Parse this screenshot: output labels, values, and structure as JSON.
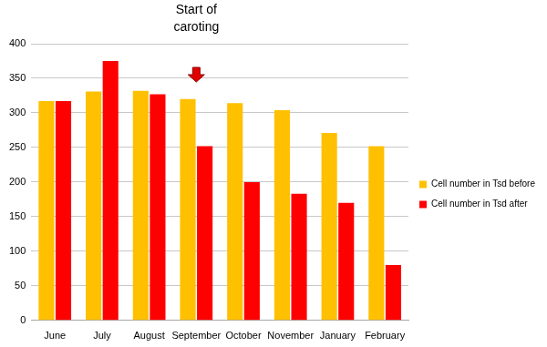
{
  "chart_data": {
    "type": "bar",
    "annotations": [
      {
        "text": "Start of caroting",
        "category": "September"
      }
    ],
    "categories": [
      "June",
      "July",
      "August",
      "September",
      "October",
      "November",
      "January",
      "February"
    ],
    "series": [
      {
        "name": "Cell number in Tsd before",
        "color": "#ffc000",
        "values": [
          317,
          331,
          332,
          320,
          314,
          304,
          271,
          252
        ]
      },
      {
        "name": "Cell number in Tsd after",
        "color": "#ff0000",
        "values": [
          317,
          375,
          327,
          252,
          200,
          183,
          170,
          80
        ]
      }
    ],
    "ylim": [
      0,
      400
    ],
    "yticks": [
      0,
      50,
      100,
      150,
      200,
      250,
      300,
      350,
      400
    ],
    "grid": true,
    "legend": "right"
  }
}
